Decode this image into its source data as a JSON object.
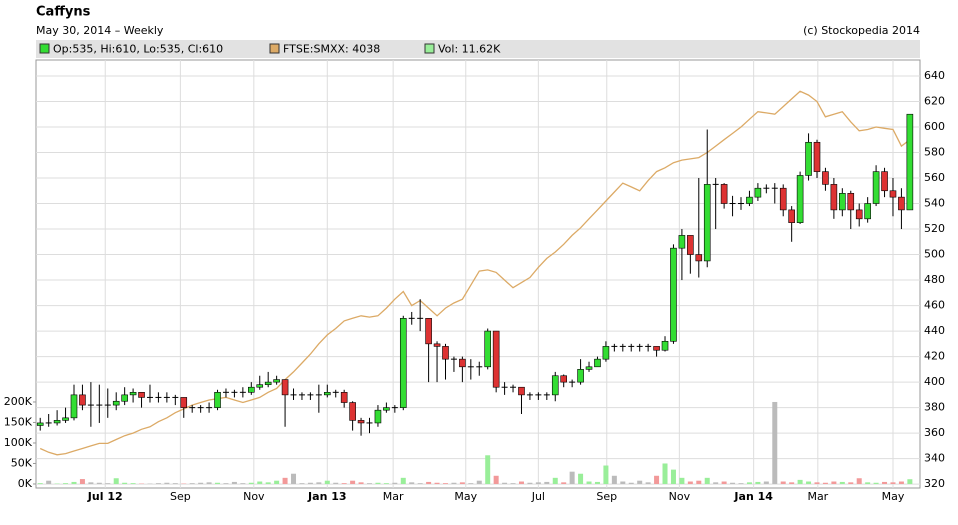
{
  "chart_data": {
    "type": "candlestick",
    "title": "Caffyns",
    "subtitle": "May 30, 2014 – Weekly",
    "credit": "(c) Stockopedia 2014",
    "up_color": "#33dd33",
    "down_color": "#dd3333",
    "volume_up_color": "#99ee99",
    "volume_down_color": "#f29999",
    "volume_flat_color": "#bbbbbb",
    "grid": true,
    "xlim": [
      -0.5,
      104.2
    ],
    "xticks": [
      {
        "value": 7.7,
        "label": "Jul 12"
      },
      {
        "value": 16.6,
        "label": "Sep"
      },
      {
        "value": 25.3,
        "label": "Nov"
      },
      {
        "value": 34.0,
        "label": "Jan 13"
      },
      {
        "value": 41.8,
        "label": "Mar"
      },
      {
        "value": 50.4,
        "label": "May"
      },
      {
        "value": 59.0,
        "label": "Jul"
      },
      {
        "value": 67.1,
        "label": "Sep"
      },
      {
        "value": 75.7,
        "label": "Nov"
      },
      {
        "value": 84.5,
        "label": "Jan 14"
      },
      {
        "value": 92.1,
        "label": "Mar"
      },
      {
        "value": 101.0,
        "label": "May"
      }
    ],
    "ylim": [
      -9800,
      1034000
    ],
    "yticks": [
      {
        "value": 0,
        "label": "0K"
      },
      {
        "value": 50000,
        "label": "50K"
      },
      {
        "value": 100000,
        "label": "100K"
      },
      {
        "value": 150000,
        "label": "150K"
      },
      {
        "value": 200000,
        "label": "200K"
      }
    ],
    "y2lim": [
      317,
      652.5
    ],
    "y2ticks": [
      320,
      340,
      360,
      380,
      400,
      420,
      440,
      460,
      480,
      500,
      520,
      540,
      560,
      580,
      600,
      620,
      640
    ],
    "series": [
      {
        "name": "Op:535, Hi:610, Lo:535, Cl:610",
        "color": "#33dd33",
        "axis": "y2",
        "open": [
          366,
          368,
          368,
          370,
          372,
          390,
          382,
          382,
          382,
          382,
          385,
          390,
          392,
          388,
          388,
          388,
          388,
          388,
          380,
          380,
          380,
          380,
          392,
          392,
          392,
          392,
          396,
          398,
          400,
          402,
          390,
          390,
          390,
          390,
          390,
          392,
          392,
          384,
          370,
          368,
          368,
          378,
          380,
          380,
          450,
          450,
          450,
          430,
          428,
          418,
          418,
          412,
          412,
          412,
          440,
          396,
          396,
          396,
          390,
          390,
          390,
          390,
          405,
          400,
          400,
          410,
          412,
          418,
          428,
          428,
          428,
          428,
          428,
          428,
          425,
          432,
          505,
          515,
          500,
          495,
          555,
          555,
          540,
          540,
          540,
          545,
          552,
          552,
          552,
          535,
          525,
          562,
          588,
          565,
          555,
          535,
          548,
          535,
          528,
          540,
          565,
          550,
          545,
          535
        ],
        "high": [
          372,
          375,
          378,
          380,
          398,
          398,
          400,
          398,
          395,
          392,
          396,
          395,
          392,
          398,
          392,
          392,
          390,
          388,
          382,
          382,
          384,
          394,
          395,
          394,
          396,
          400,
          405,
          408,
          405,
          402,
          395,
          392,
          392,
          398,
          398,
          394,
          394,
          385,
          372,
          372,
          382,
          384,
          382,
          452,
          455,
          465,
          450,
          432,
          430,
          420,
          420,
          418,
          416,
          442,
          440,
          400,
          398,
          396,
          392,
          392,
          392,
          408,
          406,
          402,
          418,
          416,
          420,
          432,
          430,
          430,
          430,
          430,
          430,
          428,
          436,
          508,
          520,
          515,
          560,
          598,
          560,
          556,
          546,
          545,
          550,
          556,
          555,
          556,
          555,
          538,
          565,
          595,
          590,
          568,
          560,
          552,
          550,
          540,
          545,
          570,
          568,
          560,
          552,
          610
        ],
        "low": [
          362,
          365,
          366,
          368,
          370,
          378,
          365,
          368,
          372,
          378,
          382,
          384,
          380,
          384,
          384,
          384,
          382,
          372,
          376,
          376,
          376,
          378,
          388,
          388,
          388,
          390,
          394,
          396,
          398,
          365,
          386,
          386,
          386,
          376,
          388,
          388,
          380,
          362,
          358,
          360,
          365,
          376,
          376,
          378,
          445,
          440,
          400,
          400,
          402,
          408,
          400,
          402,
          405,
          410,
          392,
          390,
          392,
          375,
          386,
          386,
          386,
          385,
          396,
          396,
          398,
          408,
          412,
          416,
          424,
          424,
          424,
          424,
          424,
          420,
          424,
          430,
          480,
          485,
          482,
          490,
          520,
          536,
          530,
          535,
          538,
          542,
          548,
          540,
          530,
          510,
          524,
          558,
          560,
          550,
          528,
          530,
          520,
          522,
          525,
          538,
          545,
          530,
          520,
          535
        ],
        "close": [
          368,
          368,
          370,
          372,
          390,
          382,
          382,
          382,
          382,
          385,
          390,
          392,
          388,
          388,
          388,
          388,
          388,
          380,
          380,
          380,
          380,
          392,
          392,
          392,
          392,
          396,
          398,
          400,
          402,
          390,
          390,
          390,
          390,
          390,
          392,
          392,
          384,
          370,
          368,
          368,
          378,
          380,
          380,
          450,
          450,
          450,
          430,
          428,
          418,
          418,
          412,
          412,
          412,
          440,
          396,
          396,
          396,
          390,
          390,
          390,
          390,
          405,
          400,
          400,
          410,
          412,
          418,
          428,
          428,
          428,
          428,
          428,
          428,
          425,
          432,
          505,
          515,
          500,
          495,
          555,
          555,
          540,
          540,
          540,
          545,
          552,
          552,
          552,
          535,
          525,
          562,
          588,
          565,
          555,
          535,
          548,
          535,
          528,
          540,
          565,
          550,
          545,
          535,
          610
        ]
      },
      {
        "name": "FTSE:SMXX: 4038",
        "color": "#dcaa66",
        "axis": "y2",
        "values": [
          348,
          345,
          343,
          344,
          346,
          348,
          350,
          352,
          352,
          355,
          358,
          360,
          363,
          365,
          369,
          372,
          376,
          379,
          382,
          384,
          386,
          387,
          388,
          386,
          384,
          386,
          388,
          392,
          395,
          402,
          408,
          415,
          422,
          430,
          437,
          442,
          448,
          450,
          452,
          451,
          452,
          458,
          465,
          471,
          460,
          464,
          458,
          452,
          458,
          462,
          465,
          476,
          487,
          488,
          486,
          480,
          474,
          478,
          482,
          490,
          497,
          502,
          508,
          515,
          521,
          528,
          535,
          542,
          549,
          556,
          553,
          550,
          558,
          565,
          568,
          572,
          574,
          575,
          576,
          580,
          585,
          590,
          595,
          600,
          606,
          612,
          611,
          610,
          616,
          622,
          628,
          625,
          620,
          608,
          610,
          612,
          604,
          597,
          598,
          600,
          599,
          598,
          585,
          590
        ]
      },
      {
        "name": "Vol: 11.62K",
        "color": "#99ee99",
        "axis": "y",
        "values": [
          2000,
          8000,
          1000,
          2000,
          5000,
          12000,
          4000,
          3000,
          2000,
          14000,
          3000,
          2000,
          1000,
          1000,
          2000,
          3000,
          2000,
          1000,
          2000,
          3000,
          4000,
          3000,
          2000,
          5000,
          2000,
          3000,
          6000,
          4000,
          8000,
          15000,
          25000,
          2000,
          3000,
          4000,
          8000,
          3000,
          2000,
          8000,
          4000,
          2000,
          3000,
          2000,
          3000,
          15000,
          4000,
          2000,
          5000,
          3000,
          2000,
          3000,
          4000,
          2000,
          8000,
          70000,
          20000,
          3000,
          2000,
          6000,
          3000,
          4000,
          5000,
          15000,
          4000,
          30000,
          25000,
          6000,
          5000,
          45000,
          20000,
          6000,
          3000,
          8000,
          4000,
          20000,
          50000,
          35000,
          15000,
          6000,
          8000,
          15000,
          4000,
          6000,
          3000,
          2000,
          4000,
          5000,
          6000,
          200000,
          6000,
          4000,
          10000,
          6000,
          4000,
          3000,
          6000,
          5000,
          4000,
          14000,
          4000,
          3000,
          5000,
          4000,
          6000,
          11620
        ]
      }
    ]
  }
}
